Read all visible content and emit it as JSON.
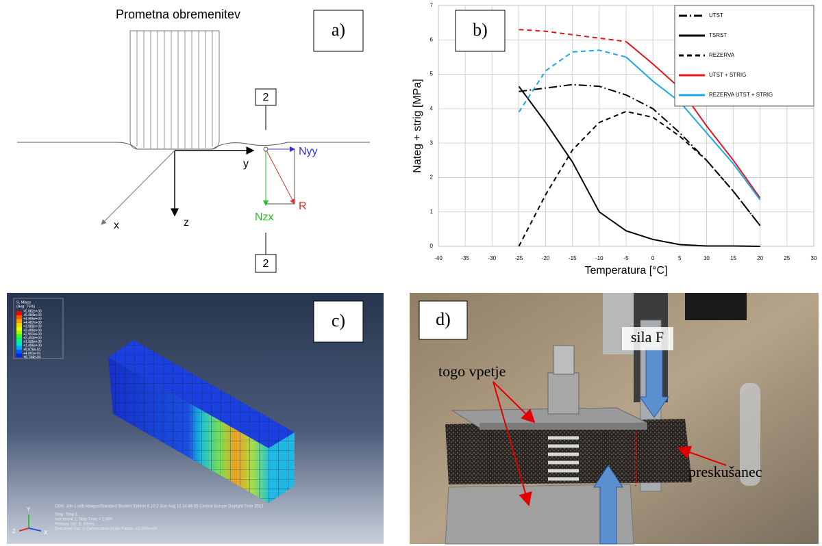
{
  "panel_a": {
    "label": "a)",
    "title": "Prometna obremenitev",
    "section_top": "2",
    "section_bottom": "2",
    "axes": {
      "x": "x",
      "y": "y",
      "z": "z"
    },
    "forces": {
      "nyy": "Nyy",
      "nzx": "Nzx",
      "r": "R"
    }
  },
  "chart_data": {
    "type": "line",
    "panel_label": "b)",
    "xlabel": "Temperatura [°C]",
    "ylabel": "Nateg + strig [MPa]",
    "x": [
      -25,
      -20,
      -15,
      -10,
      -5,
      0,
      5,
      10,
      15,
      20
    ],
    "series": [
      {
        "name": "UTST",
        "color": "#000000",
        "style": "dashdot",
        "values": [
          4.5,
          4.6,
          4.7,
          4.65,
          4.4,
          4.0,
          3.3,
          2.5,
          1.6,
          0.6
        ]
      },
      {
        "name": "TSRST",
        "color": "#000000",
        "style": "solid",
        "values": [
          4.65,
          3.6,
          2.45,
          1.0,
          0.45,
          0.2,
          0.05,
          0.01,
          0.01,
          0
        ]
      },
      {
        "name": "REZERVA",
        "color": "#000000",
        "style": "dashed",
        "values": [
          0,
          1.5,
          2.8,
          3.6,
          3.92,
          3.75,
          3.2,
          2.5,
          1.6,
          0.6
        ]
      },
      {
        "name": "UTST + STRIG",
        "color": "#e8141b",
        "style": "dashed-then-solid",
        "solid_from": -5,
        "values": [
          6.3,
          6.25,
          6.15,
          6.05,
          5.95,
          5.3,
          4.6,
          3.5,
          2.5,
          1.4
        ]
      },
      {
        "name": "REZERVA UTST + STRIG",
        "color": "#1aa7e8",
        "style": "dashed-then-solid",
        "solid_from": -5,
        "values": [
          3.9,
          5.1,
          5.65,
          5.7,
          5.5,
          4.8,
          4.2,
          3.3,
          2.4,
          1.35
        ]
      }
    ],
    "xlim": [
      -40,
      30
    ],
    "xticks": [
      -40,
      -35,
      -30,
      -25,
      -20,
      -15,
      -10,
      -5,
      0,
      5,
      10,
      15,
      20,
      25,
      30
    ],
    "ylim": [
      0,
      7
    ],
    "yticks": [
      0,
      1,
      2,
      3,
      4,
      5,
      6,
      7
    ],
    "grid": true,
    "legend": "upper right"
  },
  "panel_c": {
    "label": "c)",
    "legend_title": "S, Mises",
    "legend_subtitle": "(Avg: 75%)",
    "legend_values": [
      "+5.982e+00",
      "+5.484e+00",
      "+4.985e+00",
      "+4.487e+00",
      "+3.988e+00",
      "+3.490e+00",
      "+2.991e+00",
      "+2.493e+00",
      "+1.995e+00",
      "+1.496e+00",
      "+9.976e-01",
      "+4.991e-01",
      "+6.744e-04"
    ],
    "info": [
      "ODB: Job-1.odb    Abaqus/Standard Student Edition 6.10-2    Sun Aug 12 14:46:35 Central Europe Daylight Time 2012",
      "Step: Step-1",
      "Increment     1: Step Time =    1.000",
      "Primary Var: S, Mises",
      "Deformed Var: U   Deformation Scale Factor: +1.000e+00"
    ],
    "triad": {
      "x": "X",
      "y": "Y",
      "z": "Z"
    }
  },
  "panel_d": {
    "label": "d)",
    "force": "sila F",
    "clamp": "togo vpetje",
    "specimen": "preskušanec"
  }
}
